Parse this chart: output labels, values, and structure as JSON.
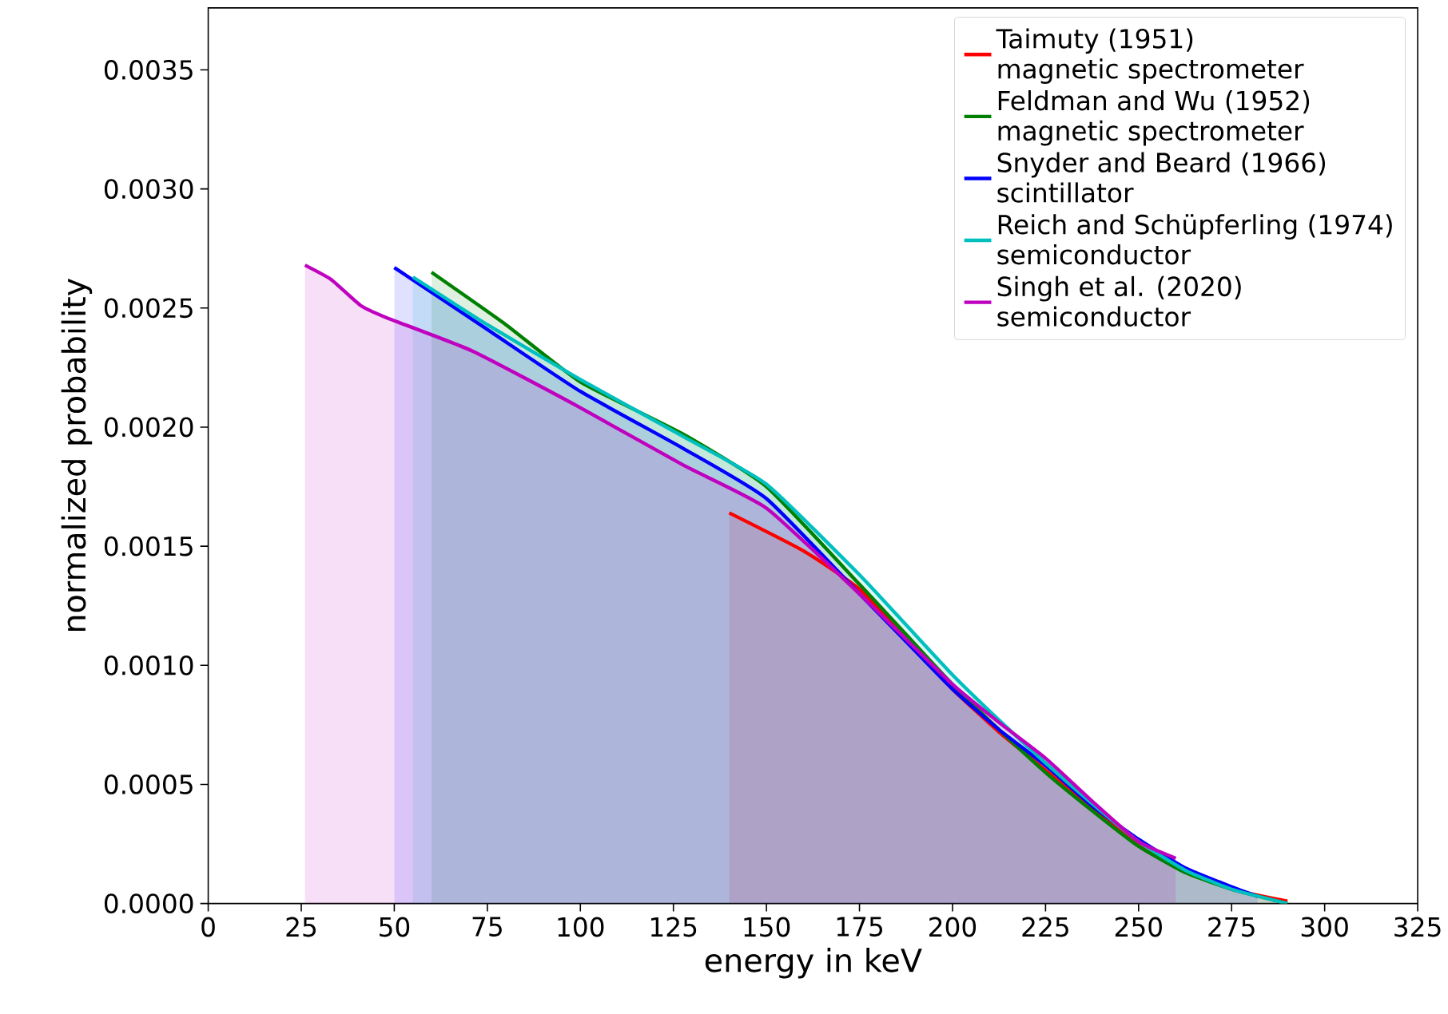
{
  "chart_data": {
    "type": "area",
    "xlabel": "energy in keV",
    "ylabel": "normalized probability",
    "xlim": [
      0,
      325
    ],
    "ylim": [
      0,
      0.00376
    ],
    "xticks": [
      0,
      25,
      50,
      75,
      100,
      125,
      150,
      175,
      200,
      225,
      250,
      275,
      300,
      325
    ],
    "yticks": [
      {
        "value": 0,
        "label": "0.0000"
      },
      {
        "value": 0.0005,
        "label": "0.0005"
      },
      {
        "value": 0.001,
        "label": "0.0010"
      },
      {
        "value": 0.0015,
        "label": "0.0015"
      },
      {
        "value": 0.002,
        "label": "0.0020"
      },
      {
        "value": 0.0025,
        "label": "0.0025"
      },
      {
        "value": 0.003,
        "label": "0.0030"
      },
      {
        "value": 0.0035,
        "label": "0.0035"
      }
    ],
    "legend": "top right",
    "grid": false,
    "marker": "none",
    "line_style": "solid",
    "series": [
      {
        "name": "Taimuty (1951)\nmagnetic spectrometer",
        "color": "#ff0000",
        "x": [
          140,
          160,
          175,
          187.5,
          200,
          212.5,
          225,
          237.5,
          250,
          262.5,
          275,
          290
        ],
        "values": [
          0.00164,
          0.00148,
          0.00132,
          0.00111,
          0.0009,
          0.00072,
          0.00056,
          0.0004,
          0.00025,
          0.00014,
          6e-05,
          1e-05
        ]
      },
      {
        "name": "Feldman and Wu (1952)\nmagnetic spectrometer",
        "color": "#008000",
        "x": [
          60,
          80,
          100,
          127.7,
          150,
          175,
          187.5,
          200,
          212.5,
          225,
          237.5,
          250,
          262.5,
          275,
          290
        ],
        "values": [
          0.00265,
          0.00243,
          0.00219,
          0.00197,
          0.00175,
          0.00134,
          0.00113,
          0.00092,
          0.00073,
          0.00055,
          0.00039,
          0.00024,
          0.00013,
          6e-05,
          0.0
        ]
      },
      {
        "name": "Snyder and Beard (1966)\nscintillator",
        "color": "#0000ff",
        "x": [
          50,
          75,
          100,
          127.7,
          150,
          175,
          187.5,
          200,
          212.5,
          225,
          237.5,
          250,
          262.5,
          275,
          282
        ],
        "values": [
          0.00267,
          0.00241,
          0.00215,
          0.00191,
          0.0017,
          0.0013,
          0.0011,
          0.0009,
          0.00073,
          0.00058,
          0.00041,
          0.00027,
          0.00015,
          7e-05,
          3e-05
        ]
      },
      {
        "name": "Reich and Schüpferling (1974)\nsemiconductor",
        "color": "#00bfbf",
        "x": [
          55,
          75,
          100,
          127.7,
          150,
          175,
          187.5,
          200,
          212.5,
          225,
          237.5,
          250,
          262.5,
          275,
          290
        ],
        "values": [
          0.00263,
          0.00243,
          0.0022,
          0.00196,
          0.00176,
          0.00138,
          0.00117,
          0.00096,
          0.00077,
          0.00059,
          0.00042,
          0.00026,
          0.00014,
          6e-05,
          0.0
        ]
      },
      {
        "name": "Singh et al. (2020)\nsemiconductor",
        "color": "#bf00bf",
        "x": [
          26,
          33,
          41,
          47.8,
          70.9,
          99,
          127.7,
          150,
          175,
          187.5,
          200,
          212.5,
          225,
          237.5,
          250,
          260
        ],
        "values": [
          0.00268,
          0.00262,
          0.00251,
          0.00246,
          0.00232,
          0.00209,
          0.00184,
          0.00166,
          0.0013,
          0.00111,
          0.00092,
          0.00076,
          0.00061,
          0.00043,
          0.00026,
          0.00019
        ]
      }
    ]
  }
}
